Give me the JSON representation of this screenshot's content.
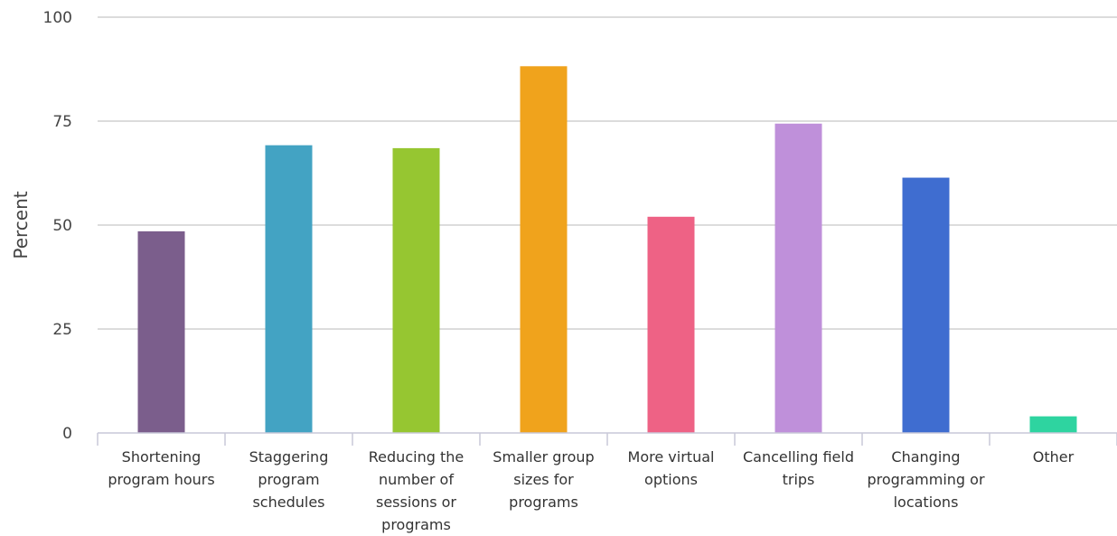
{
  "chart_data": {
    "type": "bar",
    "title": "",
    "xlabel": "",
    "ylabel": "Percent",
    "ylim": [
      0,
      100
    ],
    "yticks": [
      0,
      25,
      50,
      75,
      100
    ],
    "grid": true,
    "categories": [
      [
        "Shortening",
        "program hours"
      ],
      [
        "Staggering",
        "program",
        "schedules"
      ],
      [
        "Reducing the",
        "number of",
        "sessions or",
        "programs"
      ],
      [
        "Smaller group",
        "sizes for",
        "programs"
      ],
      [
        "More virtual",
        "options"
      ],
      [
        "Cancelling field",
        "trips"
      ],
      [
        "Changing",
        "programming or",
        "locations"
      ],
      [
        "Other"
      ]
    ],
    "values": [
      48.5,
      69.2,
      68.5,
      88.2,
      52.0,
      74.4,
      61.4,
      4.0
    ],
    "colors": [
      "#7b5e8c",
      "#43a3c3",
      "#96c631",
      "#f0a31c",
      "#ee6285",
      "#bf90da",
      "#3f6dd0",
      "#2ed4a0"
    ],
    "grid_color": "#c8c8c8",
    "axis_color": "#c8c8d8"
  }
}
